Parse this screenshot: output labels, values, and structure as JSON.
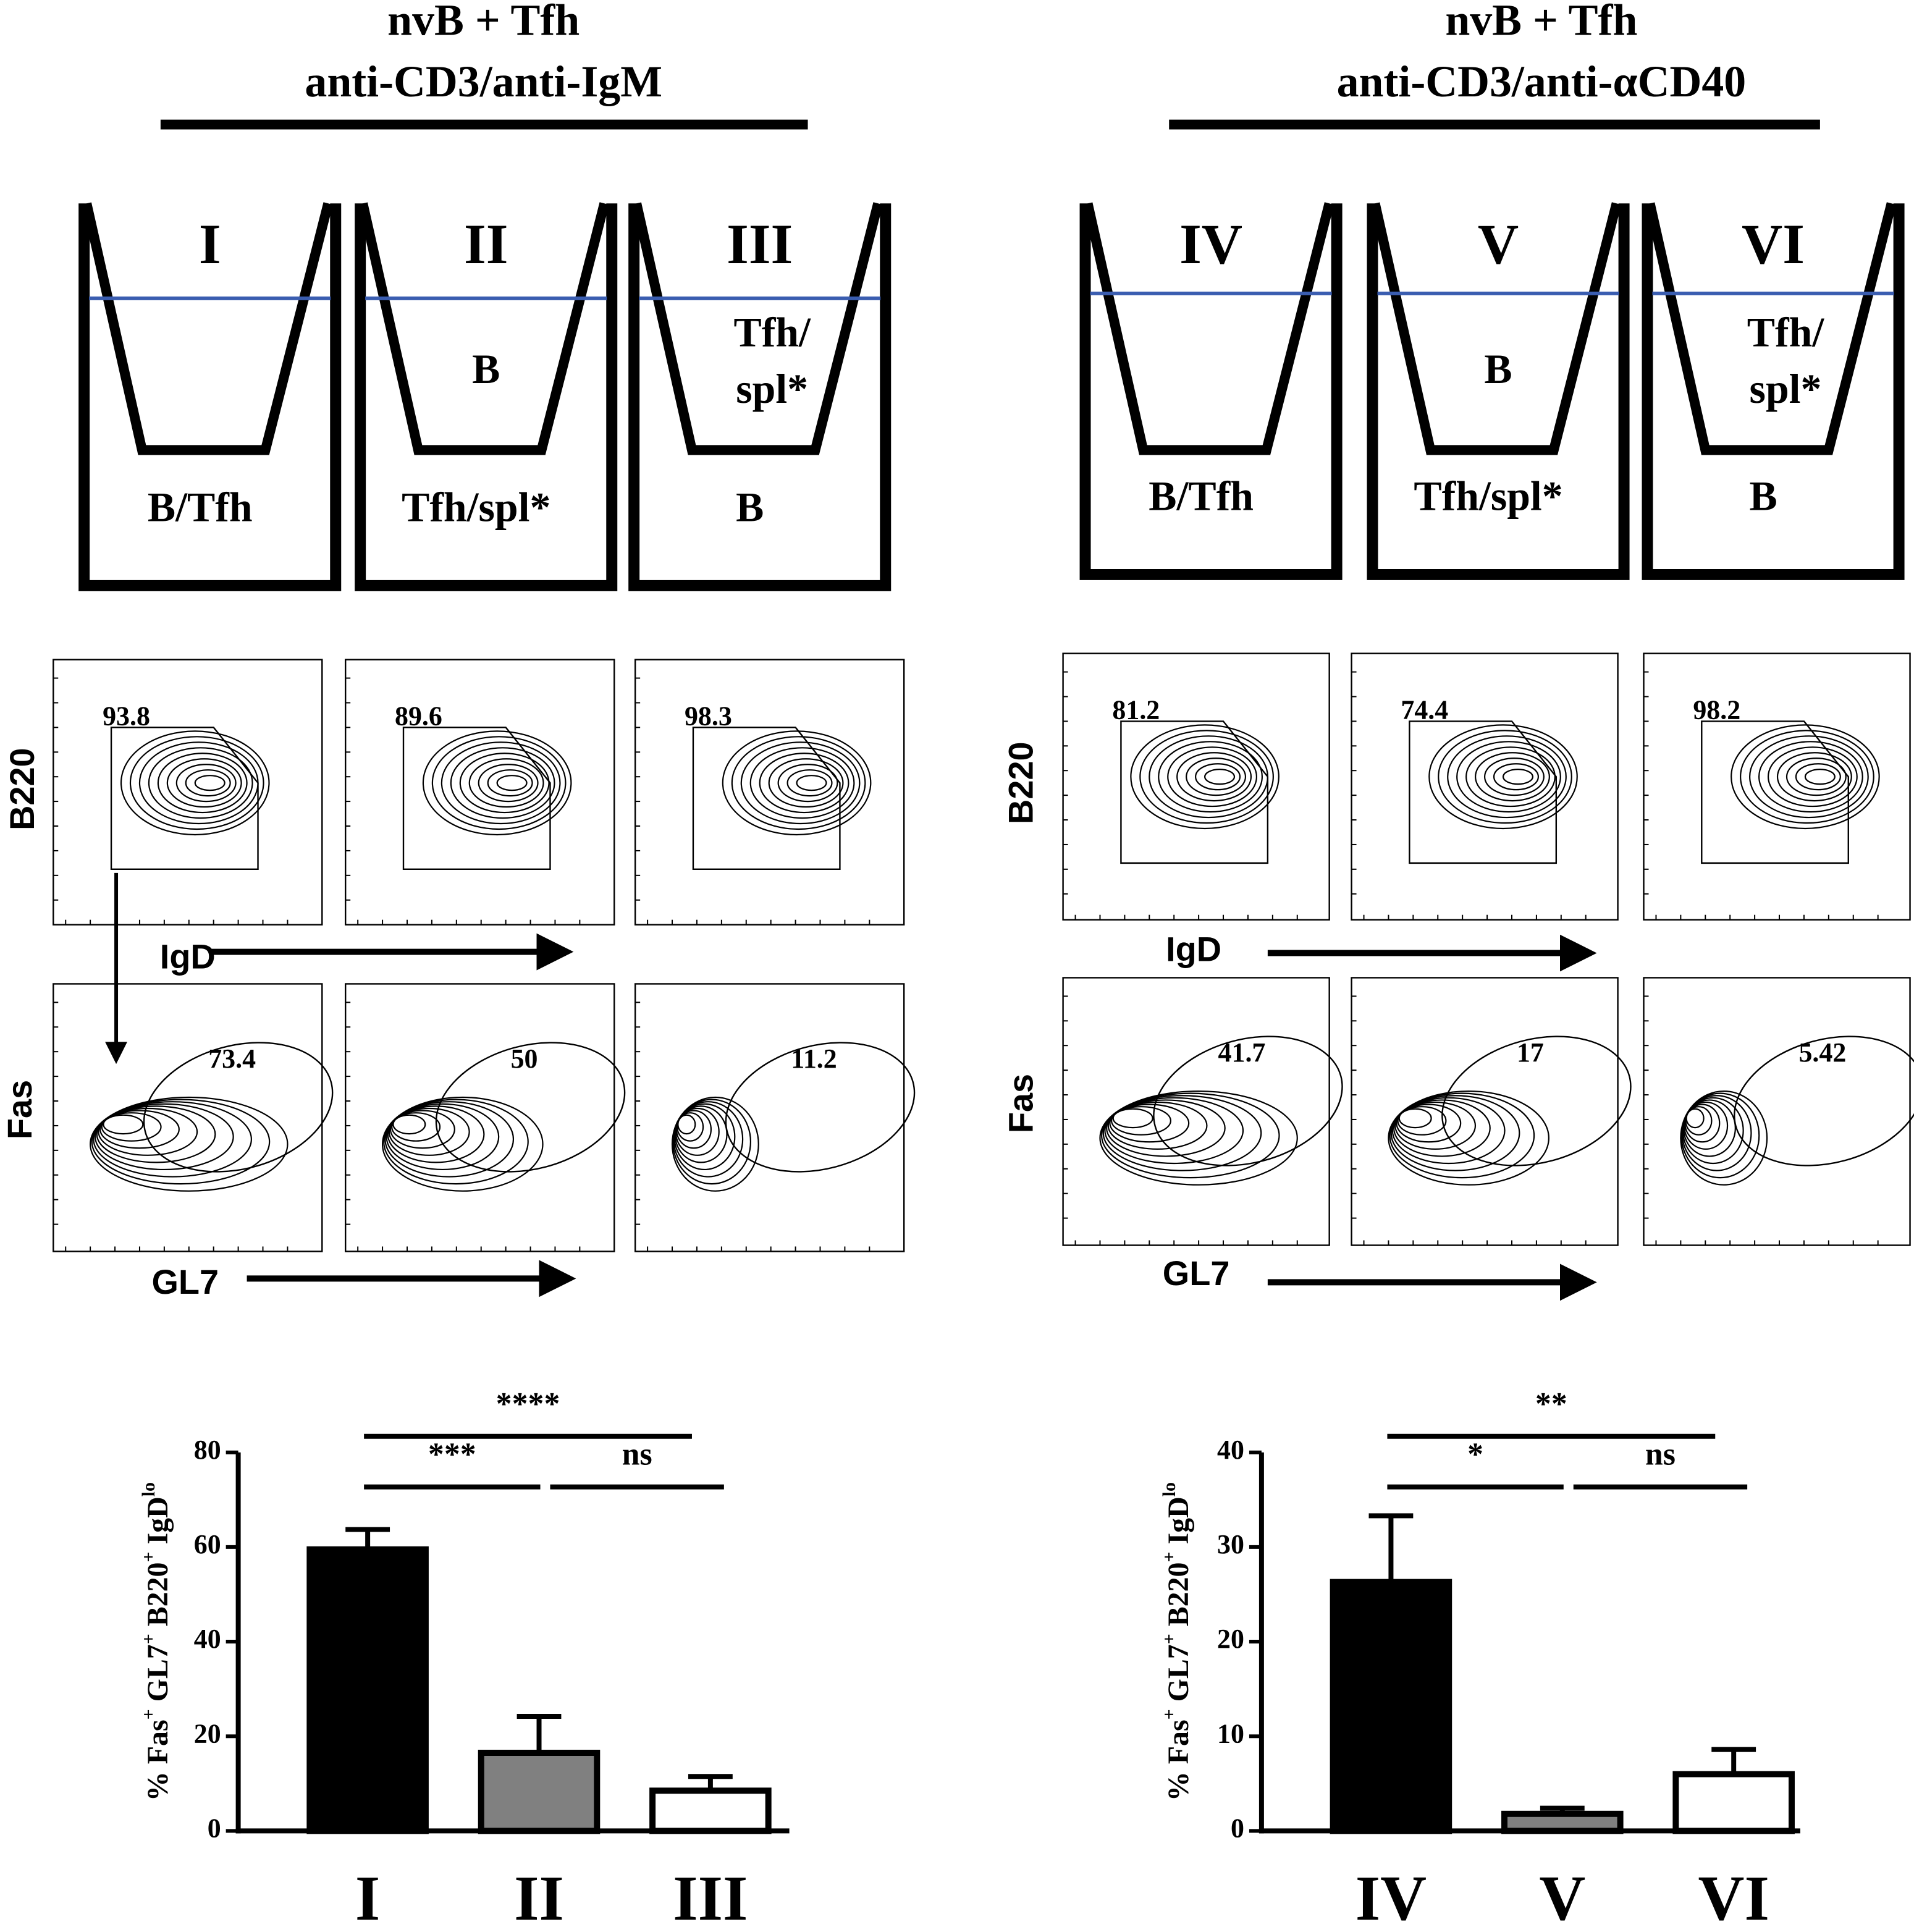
{
  "panels": [
    {
      "title": [
        "nvB + Tfh",
        "anti-CD3/anti-IgM"
      ],
      "wells": [
        {
          "numeral": "I",
          "bottom": "B/Tfh"
        },
        {
          "numeral": "II",
          "insert": [
            "B"
          ],
          "bottom": "Tfh/spl*"
        },
        {
          "numeral": "III",
          "insert": [
            "Tfh/",
            "spl*"
          ],
          "bottom": "B"
        }
      ],
      "flow": [
        {
          "y_label": "B220",
          "x_label": "IgD",
          "gates": [
            93.8,
            89.6,
            98.3
          ]
        },
        {
          "y_label": "Fas",
          "x_label": "GL7",
          "gates": [
            73.4,
            50,
            11.2
          ]
        }
      ]
    },
    {
      "title": [
        "nvB + Tfh",
        "anti-CD3/anti-αCD40"
      ],
      "wells": [
        {
          "numeral": "IV",
          "bottom": "B/Tfh"
        },
        {
          "numeral": "V",
          "insert": [
            "B"
          ],
          "bottom": "Tfh/spl*"
        },
        {
          "numeral": "VI",
          "insert": [
            "Tfh/",
            "spl*"
          ],
          "bottom": "B"
        }
      ],
      "flow": [
        {
          "y_label": "B220",
          "x_label": "IgD",
          "gates": [
            81.2,
            74.4,
            98.2
          ]
        },
        {
          "y_label": "Fas",
          "x_label": "GL7",
          "gates": [
            41.7,
            17,
            5.42
          ]
        }
      ]
    }
  ],
  "chart_data": [
    {
      "type": "bar",
      "ylabel": [
        "% Fas",
        "+",
        " GL7",
        "+",
        " B220",
        "+",
        " IgD",
        "lo"
      ],
      "categories": [
        "I",
        "II",
        "III"
      ],
      "values": [
        59.5,
        16.5,
        8.5
      ],
      "errors": [
        4.2,
        7.7,
        3
      ],
      "colors": [
        "#000000",
        "#808080",
        "#ffffff"
      ],
      "ylim": [
        0,
        80
      ],
      "yticks": [
        0,
        20,
        40,
        60,
        80
      ],
      "significance": [
        {
          "label": "****",
          "from": "I",
          "to": "III"
        },
        {
          "label": "***",
          "from": "I",
          "to": "II"
        },
        {
          "label": "ns",
          "from": "II",
          "to": "III"
        }
      ]
    },
    {
      "type": "bar",
      "ylabel": [
        "% Fas",
        "+",
        " GL7",
        "+",
        " B220",
        "+",
        " IgD",
        "lo"
      ],
      "categories": [
        "IV",
        "V",
        "VI"
      ],
      "values": [
        26.3,
        1.8,
        6
      ],
      "errors": [
        7,
        0.6,
        2.6
      ],
      "colors": [
        "#000000",
        "#808080",
        "#ffffff"
      ],
      "ylim": [
        0,
        40
      ],
      "yticks": [
        0,
        10,
        20,
        30,
        40
      ],
      "significance": [
        {
          "label": "**",
          "from": "IV",
          "to": "VI"
        },
        {
          "label": "*",
          "from": "IV",
          "to": "V"
        },
        {
          "label": "ns",
          "from": "V",
          "to": "VI"
        }
      ]
    }
  ]
}
